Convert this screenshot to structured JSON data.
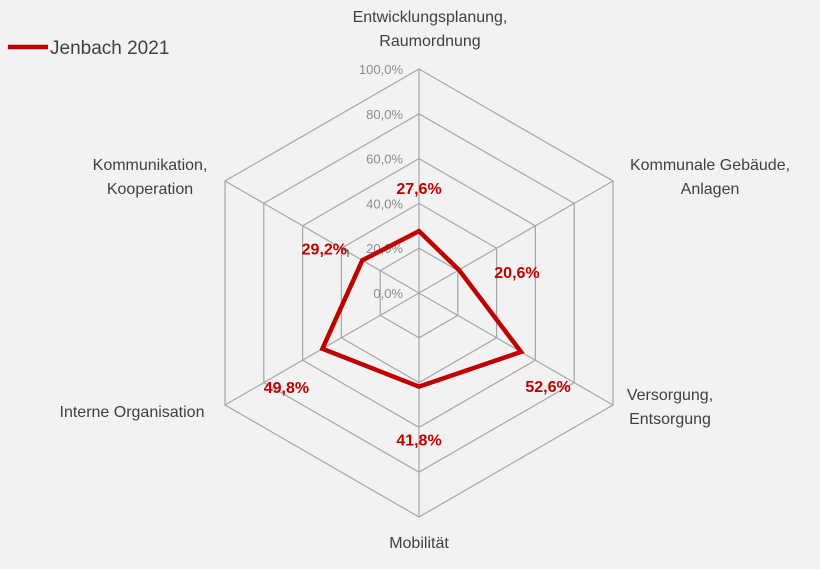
{
  "chart_data": {
    "type": "radar",
    "categories": [
      [
        "Entwicklungsplanung,",
        "Raumordnung"
      ],
      [
        "Kommunale Gebäude,",
        "Anlagen"
      ],
      [
        "Versorgung,",
        "Entsorgung"
      ],
      [
        "Mobilität"
      ],
      [
        "Interne Organisation"
      ],
      [
        "Kommunikation,",
        "Kooperation"
      ]
    ],
    "series": [
      {
        "name": "Jenbach 2021",
        "values": [
          27.6,
          20.6,
          52.6,
          41.8,
          49.8,
          29.2
        ],
        "labels": [
          "27,6%",
          "20,6%",
          "52,6%",
          "41,8%",
          "49,8%",
          "29,2%"
        ],
        "color": "#c00000"
      }
    ],
    "radial_ticks": [
      0,
      20,
      40,
      60,
      80,
      100
    ],
    "radial_tick_labels": [
      "0,0%",
      "20,0%",
      "40,0%",
      "60,0%",
      "80,0%",
      "100,0%"
    ],
    "rlim": [
      0,
      100
    ],
    "grid": true,
    "legend": "top-left",
    "grid_color": "#a6a6a6",
    "background": "#f2f2f2"
  }
}
